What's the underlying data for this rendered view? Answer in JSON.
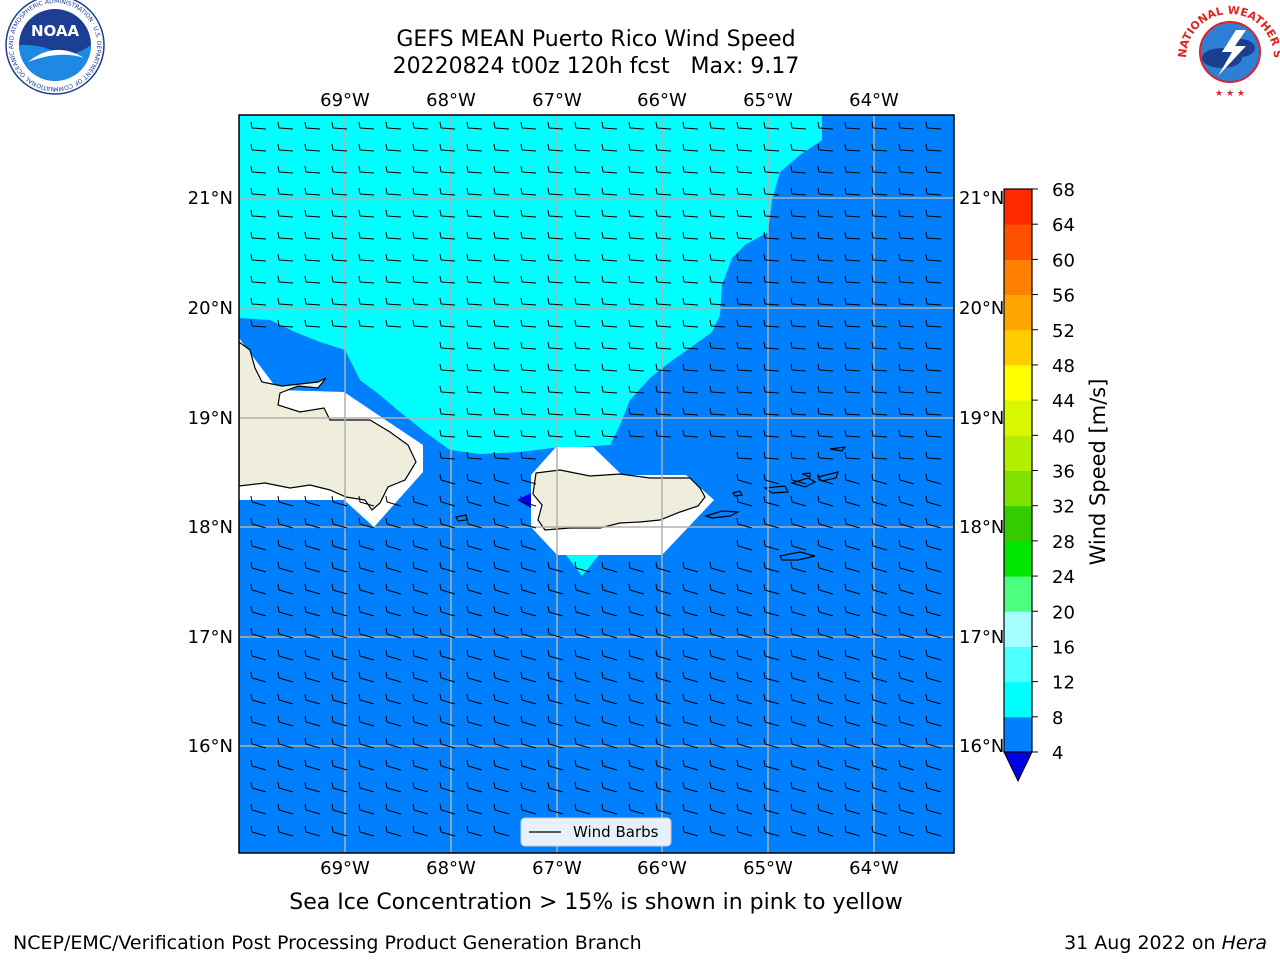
{
  "title": {
    "line1": "GEFS MEAN Puerto Rico Wind Speed",
    "line2": "20220824 t00z 120h fcst   Max: 9.17"
  },
  "map": {
    "lon_ticks": [
      "69°W",
      "68°W",
      "67°W",
      "66°W",
      "65°W",
      "64°W"
    ],
    "lat_ticks": [
      "21°N",
      "20°N",
      "19°N",
      "18°N",
      "17°N",
      "16°N"
    ],
    "lon_range": [
      -70.0,
      -63.25
    ],
    "lat_range": [
      15.0,
      21.75
    ],
    "legend_label": "Wind Barbs",
    "colors": {
      "calm_cyan": "#00ffff",
      "moderate_blue": "#0080ff",
      "low_blue": "#0000e6",
      "land": "#efeedc",
      "grid": "#b0b0b0"
    }
  },
  "colorbar": {
    "label": "Wind Speed [m/s]",
    "ticks": [
      "4",
      "8",
      "12",
      "16",
      "20",
      "24",
      "28",
      "32",
      "36",
      "40",
      "44",
      "48",
      "52",
      "56",
      "60",
      "64",
      "68"
    ],
    "under_color": "#0000e6",
    "colors": [
      "#0080ff",
      "#00ffff",
      "#4dffff",
      "#a6ffff",
      "#4dff80",
      "#00e600",
      "#33cc00",
      "#80e000",
      "#b3ee00",
      "#d9f700",
      "#ffff00",
      "#ffcc00",
      "#ffa500",
      "#ff8000",
      "#ff5000",
      "#ff2a00",
      "#ff0000"
    ]
  },
  "note": "Sea Ice Concentration > 15% is shown in pink to yellow",
  "footer": {
    "left": "NCEP/EMC/Verification Post Processing Product Generation Branch",
    "date": "31 Aug 2022 on ",
    "machine": "Hera"
  },
  "logos": {
    "noaa_text": "NOAA",
    "noaa_ring_text": "NATIONAL OCEANIC AND ATMOSPHERIC ADMINISTRATION · U.S. DEPARTMENT OF COMMERCE",
    "nws_ring_text": "NATIONAL WEATHER SERVICE"
  }
}
